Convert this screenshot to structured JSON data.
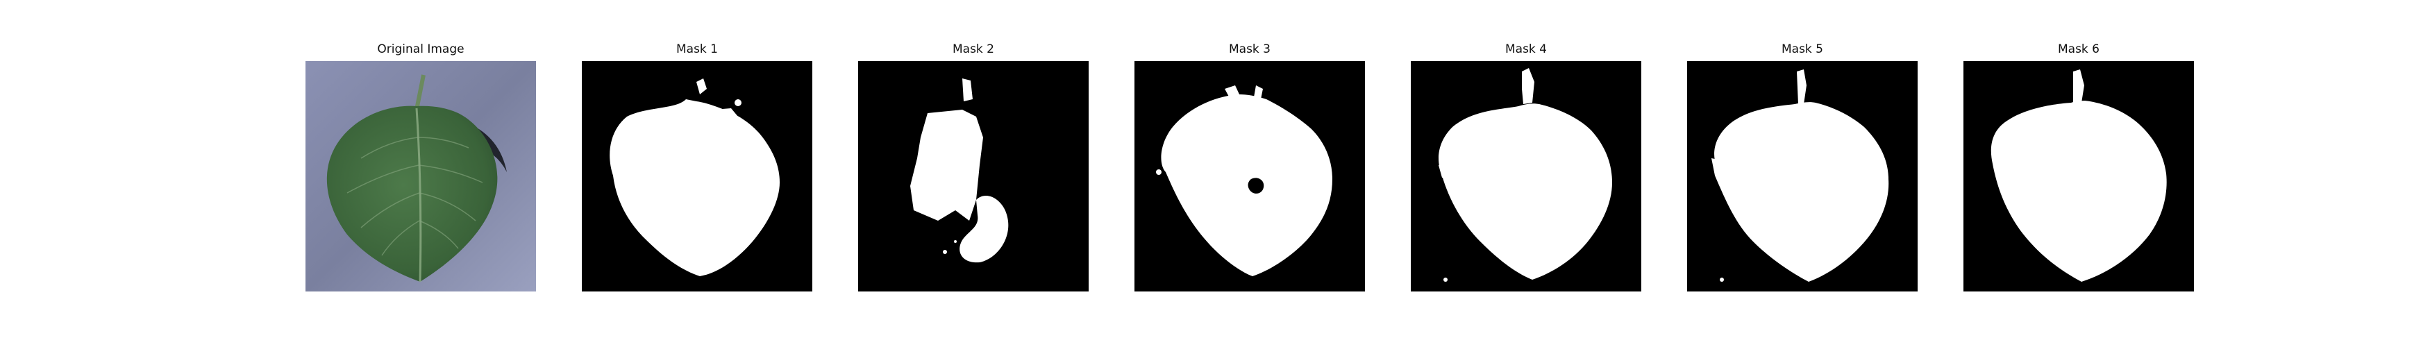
{
  "figure": {
    "panels": [
      {
        "title": "Original Image",
        "kind": "photo"
      },
      {
        "title": "Mask 1",
        "kind": "mask"
      },
      {
        "title": "Mask 2",
        "kind": "mask"
      },
      {
        "title": "Mask 3",
        "kind": "mask"
      },
      {
        "title": "Mask 4",
        "kind": "mask"
      },
      {
        "title": "Mask 5",
        "kind": "mask"
      },
      {
        "title": "Mask 6",
        "kind": "mask"
      }
    ]
  },
  "colors": {
    "mask_background": "#000000",
    "mask_foreground": "#ffffff",
    "leaf_green": "#3f6b3f",
    "leaf_dark": "#2c4f30",
    "backdrop_blue": "#7f86a8",
    "backdrop_light": "#a3a9c6"
  }
}
